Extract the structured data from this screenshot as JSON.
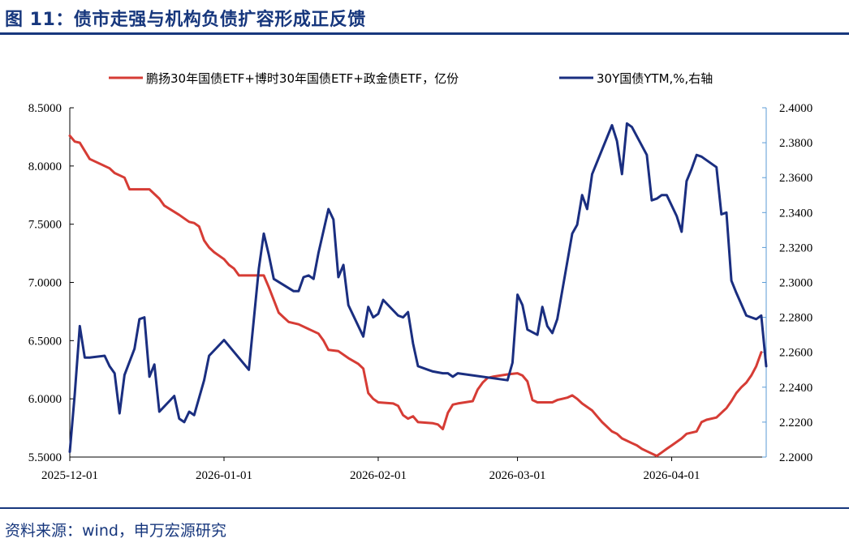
{
  "header": {
    "title": "图 11：债市走强与机构负债扩容形成正反馈"
  },
  "footer": {
    "source": "资料来源：wind，申万宏源研究"
  },
  "colors": {
    "brand": "#17377d",
    "etf_series": "#d63c35",
    "yield_series": "#1a2e80",
    "right_axis": "#5b9bd5"
  },
  "chart_data": {
    "type": "line",
    "grid": false,
    "legend_position": "top",
    "x_ticks": [
      "2025-12-01",
      "2026-01-01",
      "2026-02-01",
      "2026-03-01",
      "2026-04-01"
    ],
    "y_left": {
      "lim": [
        5.5,
        8.5
      ],
      "ticks": [
        "8.5000",
        "8.0000",
        "7.5000",
        "7.0000",
        "6.5000",
        "6.0000",
        "5.5000"
      ]
    },
    "y_right": {
      "lim": [
        2.2,
        2.4
      ],
      "ticks": [
        "2.4000",
        "2.3800",
        "2.3600",
        "2.3400",
        "2.3200",
        "2.3000",
        "2.2800",
        "2.2600",
        "2.2400",
        "2.2200",
        "2.2000"
      ]
    },
    "series": [
      {
        "name": "鹏扬30年国债ETF+博时30年国债ETF+政金债ETF，亿份",
        "axis": "left",
        "color": "#d63c35",
        "points": [
          [
            "2025-12-01",
            8.26
          ],
          [
            "2025-12-02",
            8.21
          ],
          [
            "2025-12-03",
            8.2
          ],
          [
            "2025-12-05",
            8.06
          ],
          [
            "2025-12-08",
            8.0
          ],
          [
            "2025-12-09",
            7.98
          ],
          [
            "2025-12-10",
            7.94
          ],
          [
            "2025-12-12",
            7.9
          ],
          [
            "2025-12-13",
            7.8
          ],
          [
            "2025-12-16",
            7.8
          ],
          [
            "2025-12-17",
            7.8
          ],
          [
            "2025-12-19",
            7.72
          ],
          [
            "2025-12-20",
            7.66
          ],
          [
            "2025-12-23",
            7.58
          ],
          [
            "2025-12-25",
            7.52
          ],
          [
            "2025-12-26",
            7.51
          ],
          [
            "2025-12-27",
            7.48
          ],
          [
            "2025-12-28",
            7.36
          ],
          [
            "2025-12-29",
            7.3
          ],
          [
            "2025-12-30",
            7.26
          ],
          [
            "2026-01-01",
            7.2
          ],
          [
            "2026-01-02",
            7.15
          ],
          [
            "2026-01-03",
            7.12
          ],
          [
            "2026-01-04",
            7.06
          ],
          [
            "2026-01-09",
            7.06
          ],
          [
            "2026-01-10",
            6.96
          ],
          [
            "2026-01-12",
            6.74
          ],
          [
            "2026-01-13",
            6.7
          ],
          [
            "2026-01-14",
            6.66
          ],
          [
            "2026-01-16",
            6.64
          ],
          [
            "2026-01-18",
            6.6
          ],
          [
            "2026-01-20",
            6.56
          ],
          [
            "2026-01-21",
            6.5
          ],
          [
            "2026-01-22",
            6.42
          ],
          [
            "2026-01-24",
            6.41
          ],
          [
            "2026-01-26",
            6.35
          ],
          [
            "2026-01-28",
            6.3
          ],
          [
            "2026-01-29",
            6.26
          ],
          [
            "2026-01-30",
            6.05
          ],
          [
            "2026-01-31",
            6.0
          ],
          [
            "2026-02-01",
            5.97
          ],
          [
            "2026-02-04",
            5.96
          ],
          [
            "2026-02-05",
            5.94
          ],
          [
            "2026-02-06",
            5.86
          ],
          [
            "2026-02-07",
            5.83
          ],
          [
            "2026-02-08",
            5.85
          ],
          [
            "2026-02-09",
            5.8
          ],
          [
            "2026-02-12",
            5.79
          ],
          [
            "2026-02-13",
            5.78
          ],
          [
            "2026-02-14",
            5.74
          ],
          [
            "2026-02-15",
            5.88
          ],
          [
            "2026-02-16",
            5.95
          ],
          [
            "2026-02-17",
            5.96
          ],
          [
            "2026-02-20",
            5.98
          ],
          [
            "2026-02-21",
            6.08
          ],
          [
            "2026-02-22",
            6.14
          ],
          [
            "2026-02-23",
            6.18
          ],
          [
            "2026-02-24",
            6.19
          ],
          [
            "2026-02-27",
            6.21
          ],
          [
            "2026-03-01",
            6.22
          ],
          [
            "2026-03-02",
            6.2
          ],
          [
            "2026-03-03",
            6.15
          ],
          [
            "2026-03-04",
            5.99
          ],
          [
            "2026-03-05",
            5.97
          ],
          [
            "2026-03-08",
            5.97
          ],
          [
            "2026-03-09",
            5.99
          ],
          [
            "2026-03-10",
            6.0
          ],
          [
            "2026-03-11",
            6.01
          ],
          [
            "2026-03-12",
            6.03
          ],
          [
            "2026-03-13",
            6.0
          ],
          [
            "2026-03-14",
            5.96
          ],
          [
            "2026-03-16",
            5.9
          ],
          [
            "2026-03-17",
            5.85
          ],
          [
            "2026-03-18",
            5.8
          ],
          [
            "2026-03-19",
            5.76
          ],
          [
            "2026-03-20",
            5.72
          ],
          [
            "2026-03-21",
            5.7
          ],
          [
            "2026-03-22",
            5.66
          ],
          [
            "2026-03-23",
            5.64
          ],
          [
            "2026-03-24",
            5.62
          ],
          [
            "2026-03-25",
            5.6
          ],
          [
            "2026-03-26",
            5.57
          ],
          [
            "2026-03-27",
            5.55
          ],
          [
            "2026-03-29",
            5.51
          ],
          [
            "2026-03-30",
            5.54
          ],
          [
            "2026-03-31",
            5.57
          ],
          [
            "2026-04-01",
            5.6
          ],
          [
            "2026-04-03",
            5.66
          ],
          [
            "2026-04-04",
            5.7
          ],
          [
            "2026-04-06",
            5.72
          ],
          [
            "2026-04-07",
            5.8
          ],
          [
            "2026-04-08",
            5.82
          ],
          [
            "2026-04-10",
            5.84
          ],
          [
            "2026-04-11",
            5.88
          ],
          [
            "2026-04-12",
            5.92
          ],
          [
            "2026-04-13",
            5.98
          ],
          [
            "2026-04-14",
            6.05
          ],
          [
            "2026-04-15",
            6.1
          ],
          [
            "2026-04-16",
            6.14
          ],
          [
            "2026-04-17",
            6.2
          ],
          [
            "2026-04-18",
            6.28
          ],
          [
            "2026-04-19",
            6.4
          ]
        ]
      },
      {
        "name": "30Y国债YTM,%,右轴",
        "axis": "right",
        "color": "#1a2e80",
        "points": [
          [
            "2025-12-01",
            2.203
          ],
          [
            "2025-12-02",
            2.236
          ],
          [
            "2025-12-03",
            2.275
          ],
          [
            "2025-12-04",
            2.257
          ],
          [
            "2025-12-05",
            2.257
          ],
          [
            "2025-12-08",
            2.258
          ],
          [
            "2025-12-09",
            2.252
          ],
          [
            "2025-12-10",
            2.248
          ],
          [
            "2025-12-11",
            2.225
          ],
          [
            "2025-12-12",
            2.247
          ],
          [
            "2025-12-14",
            2.262
          ],
          [
            "2025-12-15",
            2.279
          ],
          [
            "2025-12-16",
            2.28
          ],
          [
            "2025-12-17",
            2.246
          ],
          [
            "2025-12-18",
            2.253
          ],
          [
            "2025-12-19",
            2.226
          ],
          [
            "2025-12-22",
            2.235
          ],
          [
            "2025-12-23",
            2.222
          ],
          [
            "2025-12-24",
            2.22
          ],
          [
            "2025-12-25",
            2.226
          ],
          [
            "2025-12-26",
            2.224
          ],
          [
            "2025-12-28",
            2.244
          ],
          [
            "2025-12-29",
            2.258
          ],
          [
            "2026-01-01",
            2.267
          ],
          [
            "2026-01-06",
            2.25
          ],
          [
            "2026-01-08",
            2.308
          ],
          [
            "2026-01-09",
            2.328
          ],
          [
            "2026-01-10",
            2.316
          ],
          [
            "2026-01-11",
            2.302
          ],
          [
            "2026-01-15",
            2.295
          ],
          [
            "2026-01-16",
            2.295
          ],
          [
            "2026-01-17",
            2.303
          ],
          [
            "2026-01-18",
            2.304
          ],
          [
            "2026-01-19",
            2.302
          ],
          [
            "2026-01-20",
            2.317
          ],
          [
            "2026-01-22",
            2.342
          ],
          [
            "2026-01-23",
            2.336
          ],
          [
            "2026-01-24",
            2.303
          ],
          [
            "2026-01-25",
            2.31
          ],
          [
            "2026-01-26",
            2.287
          ],
          [
            "2026-01-29",
            2.269
          ],
          [
            "2026-01-30",
            2.286
          ],
          [
            "2026-01-31",
            2.28
          ],
          [
            "2026-02-01",
            2.282
          ],
          [
            "2026-02-02",
            2.29
          ],
          [
            "2026-02-04",
            2.284
          ],
          [
            "2026-02-05",
            2.281
          ],
          [
            "2026-02-06",
            2.28
          ],
          [
            "2026-02-07",
            2.283
          ],
          [
            "2026-02-08",
            2.265
          ],
          [
            "2026-02-09",
            2.252
          ],
          [
            "2026-02-11",
            2.25
          ],
          [
            "2026-02-12",
            2.249
          ],
          [
            "2026-02-14",
            2.248
          ],
          [
            "2026-02-15",
            2.248
          ],
          [
            "2026-02-16",
            2.246
          ],
          [
            "2026-02-17",
            2.248
          ],
          [
            "2026-02-27",
            2.244
          ],
          [
            "2026-02-28",
            2.254
          ],
          [
            "2026-03-01",
            2.293
          ],
          [
            "2026-03-02",
            2.287
          ],
          [
            "2026-03-03",
            2.273
          ],
          [
            "2026-03-05",
            2.27
          ],
          [
            "2026-03-06",
            2.286
          ],
          [
            "2026-03-07",
            2.275
          ],
          [
            "2026-03-08",
            2.271
          ],
          [
            "2026-03-09",
            2.279
          ],
          [
            "2026-03-12",
            2.328
          ],
          [
            "2026-03-13",
            2.333
          ],
          [
            "2026-03-14",
            2.35
          ],
          [
            "2026-03-15",
            2.342
          ],
          [
            "2026-03-16",
            2.362
          ],
          [
            "2026-03-20",
            2.39
          ],
          [
            "2026-03-21",
            2.381
          ],
          [
            "2026-03-22",
            2.362
          ],
          [
            "2026-03-23",
            2.391
          ],
          [
            "2026-03-24",
            2.389
          ],
          [
            "2026-03-27",
            2.373
          ],
          [
            "2026-03-28",
            2.347
          ],
          [
            "2026-03-29",
            2.348
          ],
          [
            "2026-03-30",
            2.35
          ],
          [
            "2026-03-31",
            2.35
          ],
          [
            "2026-04-02",
            2.338
          ],
          [
            "2026-04-03",
            2.329
          ],
          [
            "2026-04-04",
            2.358
          ],
          [
            "2026-04-05",
            2.365
          ],
          [
            "2026-04-06",
            2.373
          ],
          [
            "2026-04-07",
            2.372
          ],
          [
            "2026-04-10",
            2.366
          ],
          [
            "2026-04-11",
            2.339
          ],
          [
            "2026-04-12",
            2.34
          ],
          [
            "2026-04-13",
            2.301
          ],
          [
            "2026-04-14",
            2.294
          ],
          [
            "2026-04-16",
            2.281
          ],
          [
            "2026-04-17",
            2.28
          ],
          [
            "2026-04-18",
            2.279
          ],
          [
            "2026-04-19",
            2.281
          ],
          [
            "2026-04-20",
            2.252
          ]
        ]
      }
    ]
  }
}
